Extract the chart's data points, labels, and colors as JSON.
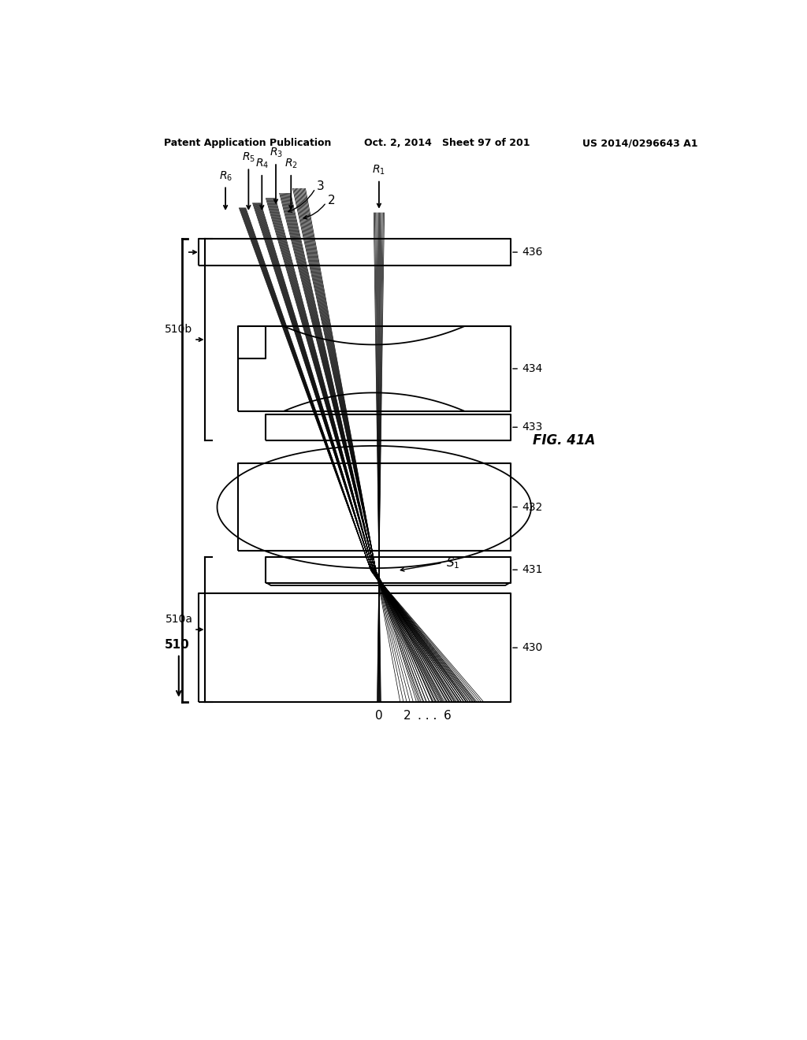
{
  "title_left": "Patent Application Publication",
  "title_mid": "Oct. 2, 2014   Sheet 97 of 201",
  "title_right": "US 2014/0296643 A1",
  "fig_label": "FIG. 41A",
  "bg_color": "#ffffff",
  "line_color": "#000000",
  "component_labels": [
    "436",
    "434",
    "433",
    "432",
    "431",
    "430"
  ],
  "ray_labels": [
    "R_6",
    "R_5",
    "R_4",
    "R_3",
    "R_2",
    "R_1"
  ],
  "bottom_labels": [
    "0",
    "2",
    "...",
    "6"
  ],
  "side_labels": [
    "510b",
    "510a",
    "510"
  ],
  "other_labels": [
    "S_1",
    "2",
    "3"
  ]
}
